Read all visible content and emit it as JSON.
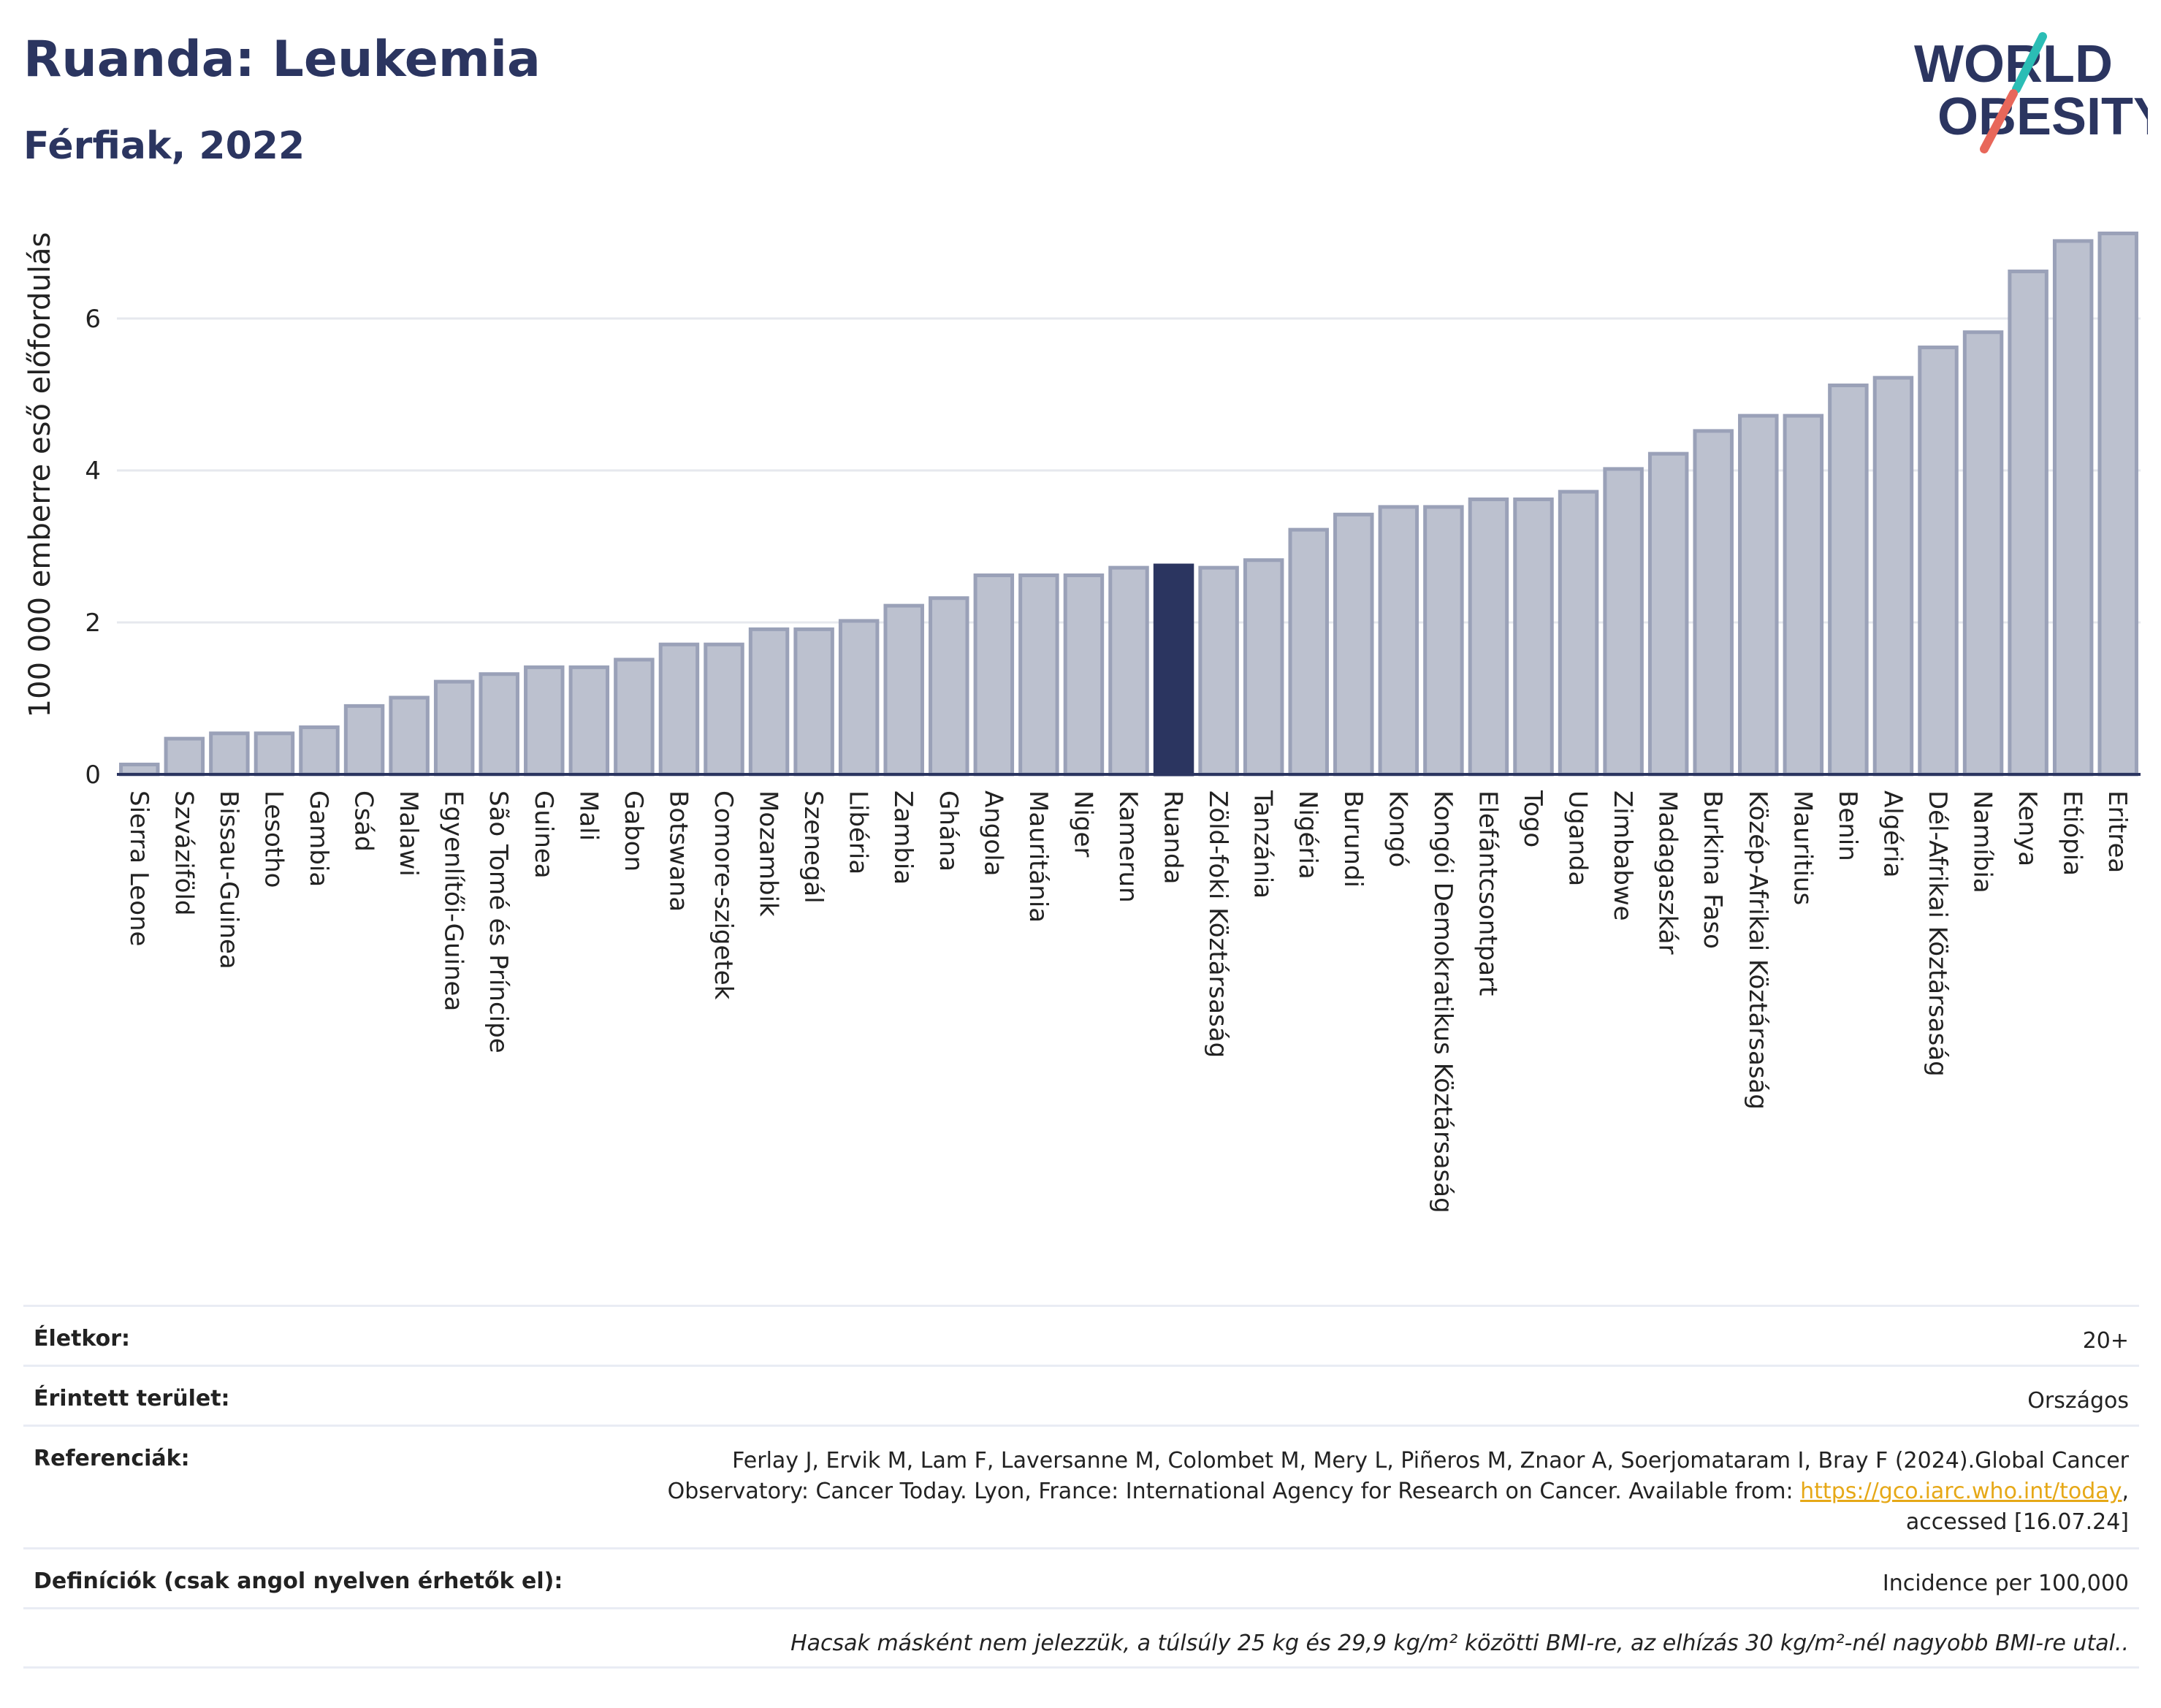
{
  "header": {
    "title": "Ruanda: Leukemia",
    "subtitle": "Férfiak, 2022",
    "logo_line1": "WORLD",
    "logo_line2": "OBESITY"
  },
  "colors": {
    "bar": "#bcc1cf",
    "bar_border": "#9aa1b8",
    "highlight": "#2b3560",
    "title": "#2b3560",
    "logo_slash_top": "#2bbdb5",
    "logo_slash_bottom": "#e8675a"
  },
  "chart_data": {
    "type": "bar",
    "ylabel": "100 000 emberre eső előfordulás",
    "ylim": [
      0,
      7.5
    ],
    "yticks": [
      0,
      2,
      4,
      6
    ],
    "grid": true,
    "highlight": "Ruanda",
    "categories": [
      "Sierra Leone",
      "Szváziföld",
      "Bissau-Guinea",
      "Lesotho",
      "Gambia",
      "Csád",
      "Malawi",
      "Egyenlítői-Guinea",
      "São Tomé és Príncipe",
      "Guinea",
      "Mali",
      "Gabon",
      "Botswana",
      "Comore-szigetek",
      "Mozambik",
      "Szenegál",
      "Libéria",
      "Zambia",
      "Ghána",
      "Angola",
      "Mauritánia",
      "Niger",
      "Kamerun",
      "Ruanda",
      "Zöld-foki Köztársaság",
      "Tanzánia",
      "Nigéria",
      "Burundi",
      "Kongó",
      "Kongói Demokratikus Köztársaság",
      "Elefántcsontpart",
      "Togo",
      "Uganda",
      "Zimbabwe",
      "Madagaszkár",
      "Burkina Faso",
      "Közép-Afrikai Köztársaság",
      "Mauritius",
      "Benin",
      "Algéria",
      "Dél-Afrikai Köztársaság",
      "Namíbia",
      "Kenya",
      "Etiópia",
      "Eritrea"
    ],
    "values": [
      0.13,
      0.47,
      0.54,
      0.54,
      0.62,
      0.9,
      1.01,
      1.22,
      1.32,
      1.41,
      1.41,
      1.51,
      1.71,
      1.71,
      1.91,
      1.91,
      2.02,
      2.22,
      2.32,
      2.62,
      2.62,
      2.62,
      2.72,
      2.75,
      2.72,
      2.82,
      3.22,
      3.42,
      3.52,
      3.52,
      3.62,
      3.62,
      3.72,
      4.02,
      4.22,
      4.52,
      4.72,
      4.72,
      5.12,
      5.22,
      5.62,
      5.82,
      6.62,
      7.02,
      7.12
    ]
  },
  "info": {
    "age_label": "Életkor:",
    "age_value": "20+",
    "area_label": "Érintett terület:",
    "area_value": "Országos",
    "ref_label": "Referenciák:",
    "ref_text1": "Ferlay J, Ervik M, Lam F, Laversanne M, Colombet M, Mery L, Piñeros M, Znaor A, Soerjomataram I, Bray F (2024).Global Cancer",
    "ref_text2": "Observatory: Cancer Today. Lyon, France: International Agency for Research on Cancer. Available from: ",
    "ref_link": "https://gco.iarc.who.int/today",
    "ref_text3": ",",
    "ref_text4": "accessed [16.07.24]",
    "def_label": "Definíciók (csak angol nyelven érhetők el):",
    "def_value": "Incidence per 100,000",
    "note": "Hacsak másként nem jelezzük, a túlsúly 25 kg és 29,9 kg/m² közötti BMI-re, az elhízás 30 kg/m²-nél nagyobb BMI-re utal.."
  }
}
